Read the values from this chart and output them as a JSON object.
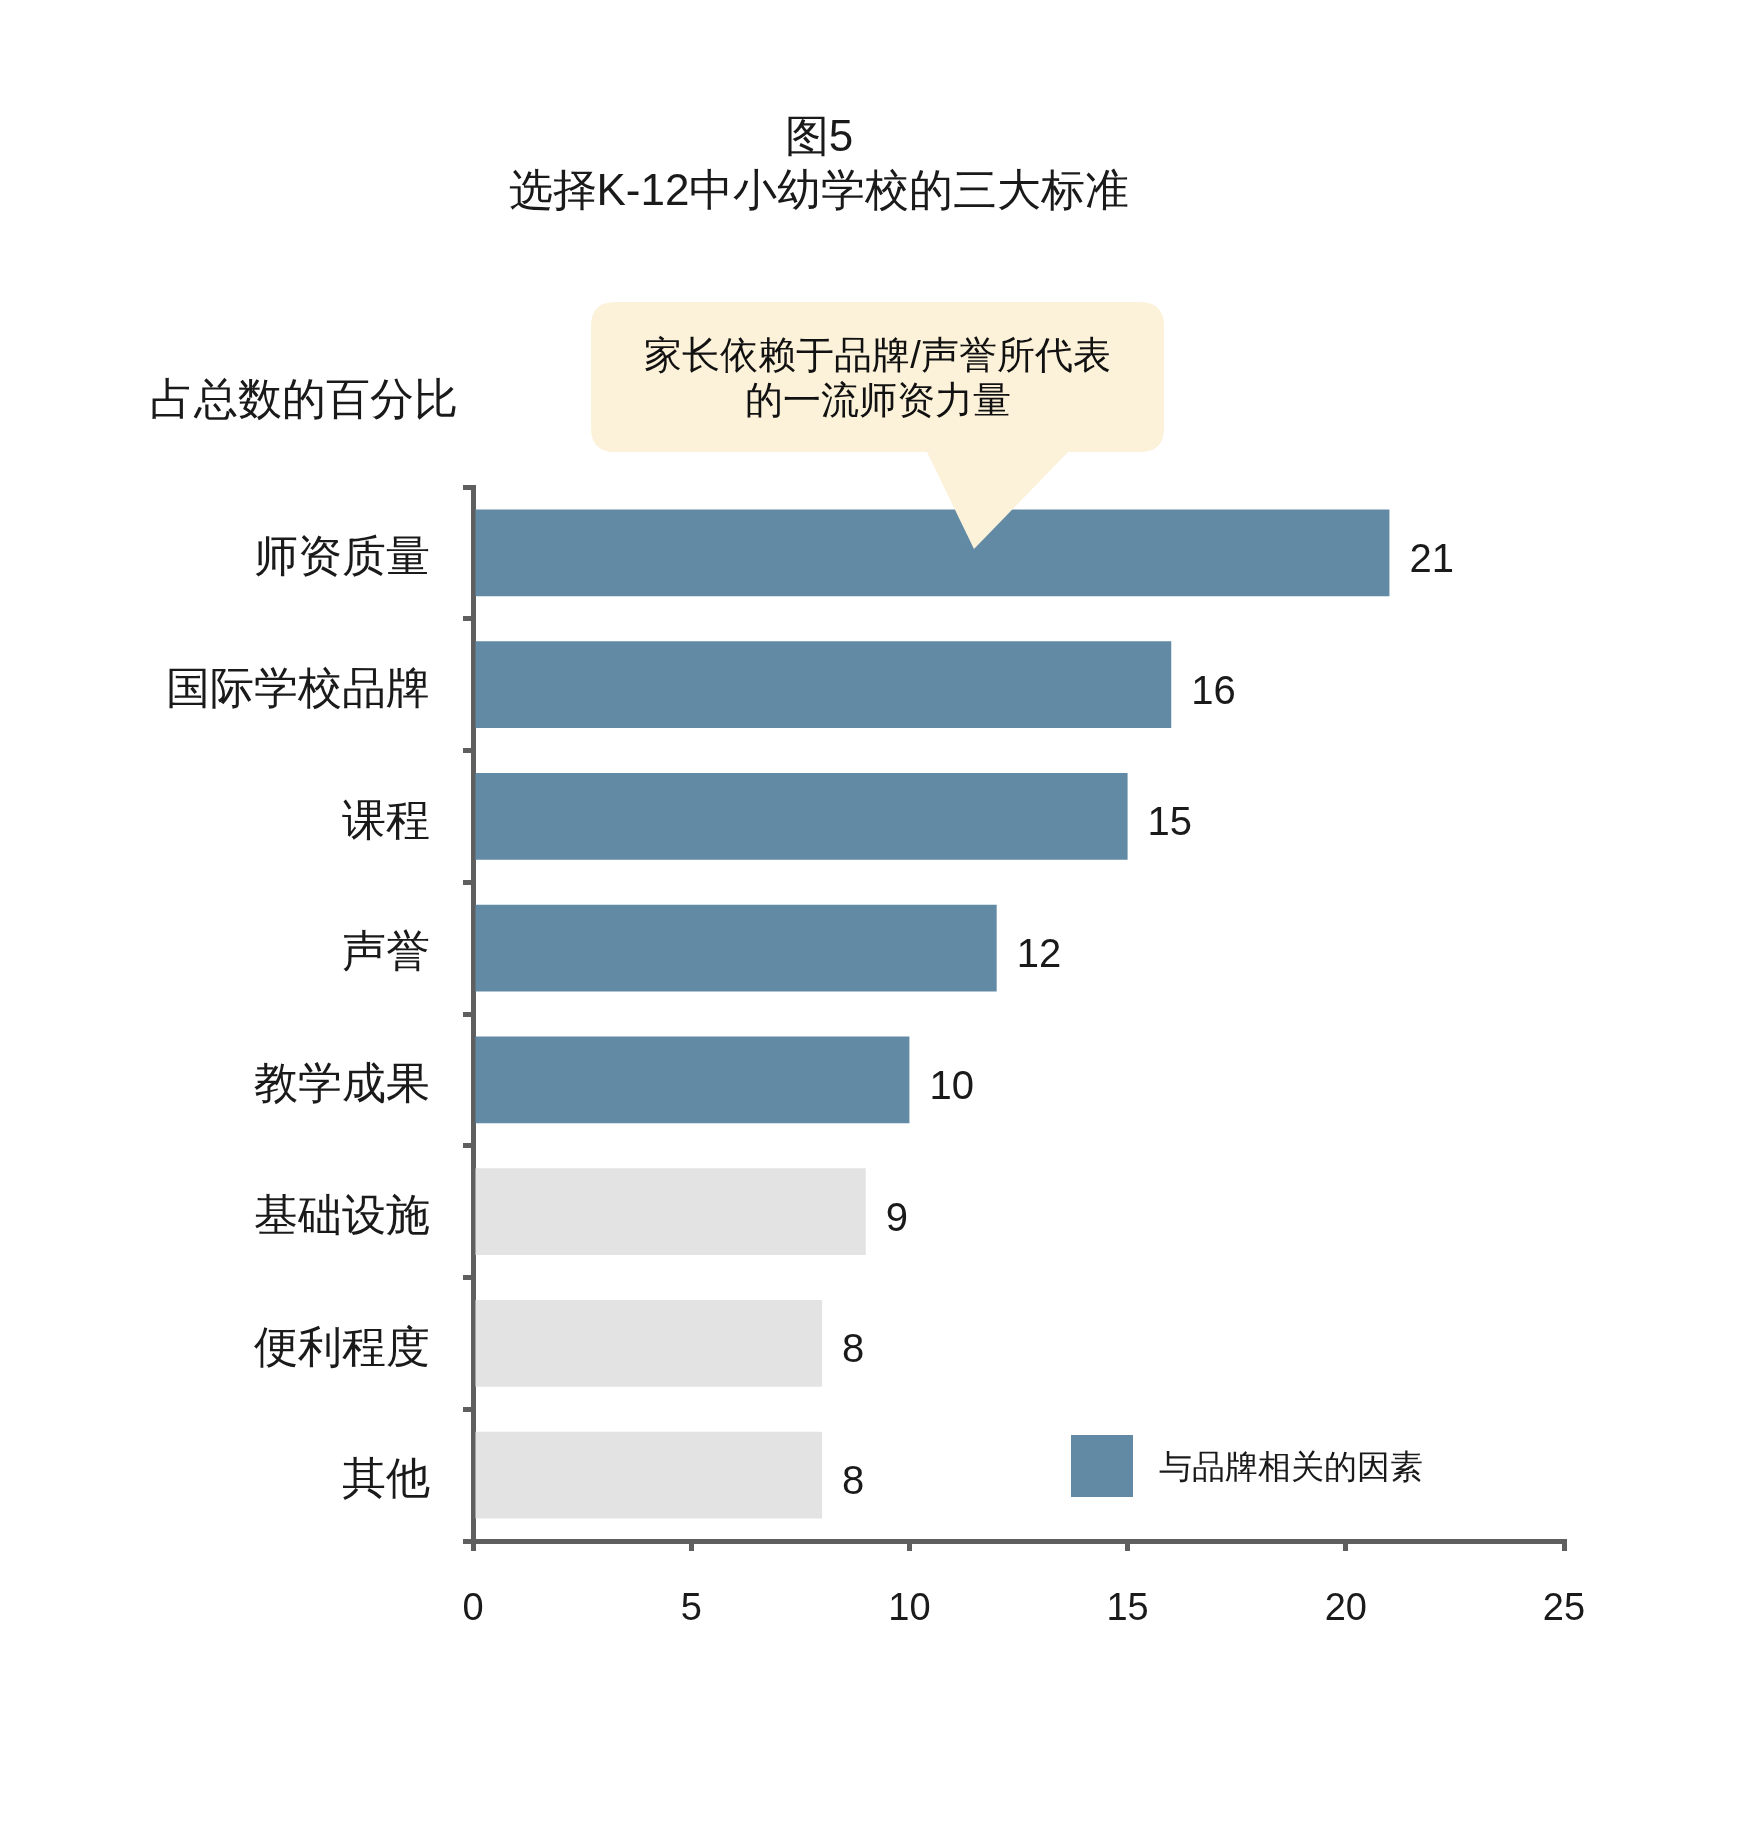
{
  "chart_data": {
    "type": "bar",
    "orientation": "horizontal",
    "title": "图5",
    "subtitle": "选择K-12中小幼学校的三大标准",
    "ylabel": "占总数的百分比",
    "categories": [
      "师资质量",
      "国际学校品牌",
      "课程",
      "声誉",
      "教学成果",
      "基础设施",
      "便利程度",
      "其他"
    ],
    "series": [
      {
        "name": "与品牌相关的因素",
        "color": "#628aa5",
        "values": [
          21,
          16,
          15,
          12,
          10,
          null,
          null,
          null
        ]
      },
      {
        "color": "#e3e3e3",
        "values": [
          null,
          null,
          null,
          null,
          null,
          9,
          8,
          8
        ]
      }
    ],
    "xlim": [
      0,
      25
    ],
    "xticks": [
      0,
      5,
      10,
      15,
      20,
      25
    ],
    "data_labels": true,
    "legend": "bottom right",
    "annotations": [
      "家长依赖于品牌/声誉所代表的一流师资力量"
    ]
  }
}
